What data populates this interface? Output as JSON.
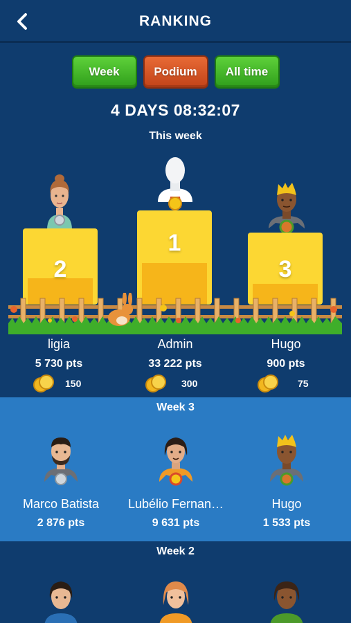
{
  "header": {
    "title": "RANKING",
    "back_icon": "chevron-left-icon"
  },
  "tabs": [
    {
      "label": "Week",
      "color": "#3fb826"
    },
    {
      "label": "Podium",
      "color": "#d4552a",
      "selected": true
    },
    {
      "label": "All time",
      "color": "#3fb826"
    }
  ],
  "countdown": "4 DAYS 08:32:07",
  "period_label": "This week",
  "podium": [
    {
      "rank": "2",
      "name": "ligia",
      "points": "5 730 pts",
      "coins": "150"
    },
    {
      "rank": "1",
      "name": "Admin",
      "points": "33 222 pts",
      "coins": "300"
    },
    {
      "rank": "3",
      "name": "Hugo",
      "points": "900 pts",
      "coins": "75"
    }
  ],
  "weeks": [
    {
      "title": "Week 3",
      "players": [
        {
          "name": "Marco Batista",
          "points": "2 876 pts"
        },
        {
          "name": "Lubélio Fernan…",
          "points": "9 631 pts"
        },
        {
          "name": "Hugo",
          "points": "1 533 pts"
        }
      ]
    },
    {
      "title": "Week 2"
    }
  ],
  "colors": {
    "background": "#0f3c6e",
    "band_light": "#2a7bc4",
    "podium_yellow": "#fcd733",
    "podium_orange": "#f6b51a"
  }
}
